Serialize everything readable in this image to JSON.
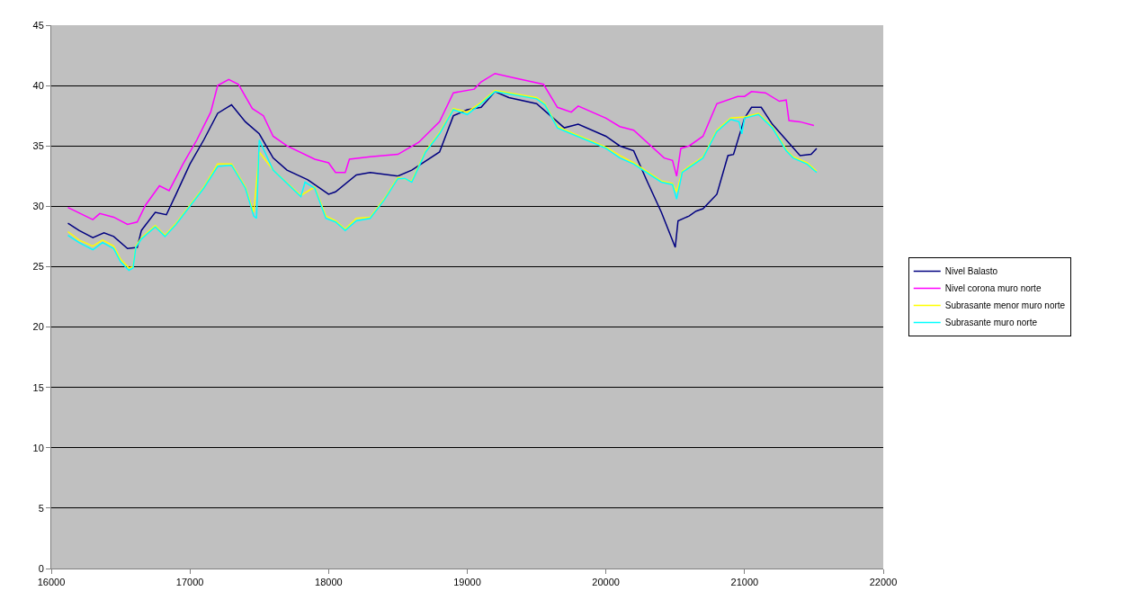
{
  "chart_data": {
    "type": "line",
    "xlim": [
      16000,
      22000
    ],
    "xticks": [
      16000,
      17000,
      18000,
      19000,
      20000,
      21000,
      22000
    ],
    "ylim": [
      0,
      45
    ],
    "yticks": [
      0,
      5,
      10,
      15,
      20,
      25,
      30,
      35,
      40,
      45
    ],
    "grid": "y",
    "legend": "right",
    "marker": "none",
    "line_style": "solid",
    "series": [
      {
        "name": "Nivel Balasto",
        "color": "#000080",
        "x": [
          16120,
          16200,
          16300,
          16380,
          16450,
          16550,
          16620,
          16650,
          16750,
          16830,
          16900,
          17000,
          17100,
          17200,
          17300,
          17400,
          17500,
          17600,
          17700,
          17850,
          18000,
          18050,
          18200,
          18300,
          18500,
          18600,
          18800,
          18900,
          19000,
          19100,
          19200,
          19300,
          19500,
          19600,
          19700,
          19800,
          20000,
          20100,
          20200,
          20300,
          20400,
          20500,
          20520,
          20600,
          20650,
          20700,
          20800,
          20880,
          20920,
          21000,
          21050,
          21120,
          21200,
          21300,
          21400,
          21480,
          21520
        ],
        "values": [
          28.6,
          28.0,
          27.4,
          27.8,
          27.5,
          26.5,
          26.6,
          28.0,
          29.5,
          29.3,
          31.0,
          33.5,
          35.5,
          37.7,
          38.4,
          37.0,
          36.0,
          34.0,
          33.0,
          32.2,
          31.0,
          31.2,
          32.6,
          32.8,
          32.5,
          33.0,
          34.5,
          37.5,
          38.0,
          38.2,
          39.5,
          39.0,
          38.5,
          37.5,
          36.5,
          36.8,
          35.8,
          35.0,
          34.6,
          32.0,
          29.5,
          26.6,
          28.8,
          29.2,
          29.6,
          29.8,
          31.0,
          34.2,
          34.3,
          37.3,
          38.2,
          38.2,
          36.8,
          35.5,
          34.2,
          34.3,
          34.8
        ]
      },
      {
        "name": "Nivel corona muro norte",
        "color": "#ff00ff",
        "x": [
          16120,
          16300,
          16350,
          16450,
          16550,
          16620,
          16680,
          16780,
          16850,
          16950,
          17050,
          17150,
          17200,
          17280,
          17350,
          17450,
          17530,
          17600,
          17700,
          17900,
          18000,
          18050,
          18120,
          18150,
          18300,
          18500,
          18650,
          18800,
          18900,
          19050,
          19100,
          19200,
          19350,
          19550,
          19650,
          19750,
          19800,
          20000,
          20100,
          20200,
          20420,
          20480,
          20510,
          20540,
          20600,
          20700,
          20800,
          20950,
          21000,
          21050,
          21150,
          21250,
          21300,
          21320,
          21400,
          21500
        ],
        "values": [
          29.9,
          28.9,
          29.4,
          29.1,
          28.5,
          28.7,
          30.1,
          31.7,
          31.3,
          33.5,
          35.5,
          37.8,
          40.0,
          40.5,
          40.1,
          38.1,
          37.5,
          35.8,
          35.0,
          33.9,
          33.6,
          32.8,
          32.8,
          33.9,
          34.1,
          34.3,
          35.3,
          37.0,
          39.4,
          39.7,
          40.3,
          41.0,
          40.6,
          40.1,
          38.2,
          37.8,
          38.3,
          37.3,
          36.6,
          36.3,
          34.0,
          33.8,
          32.5,
          34.8,
          35.0,
          35.8,
          38.5,
          39.1,
          39.1,
          39.5,
          39.4,
          38.7,
          38.8,
          37.1,
          37.0,
          36.7
        ]
      },
      {
        "name": "Subrasante menor muro norte",
        "color": "#ffff00",
        "x": [
          16120,
          16200,
          16300,
          16370,
          16450,
          16500,
          16560,
          16590,
          16610,
          16650,
          16750,
          16820,
          16900,
          17000,
          17100,
          17200,
          17300,
          17400,
          17460,
          17500,
          17600,
          17800,
          17900,
          17980,
          18050,
          18120,
          18200,
          18300,
          18400,
          18500,
          18600,
          18700,
          18800,
          18900,
          19000,
          19100,
          19200,
          19500,
          19560,
          19650,
          19750,
          19900,
          20000,
          20100,
          20200,
          20400,
          20480,
          20510,
          20550,
          20700,
          20800,
          20900,
          21000,
          21100,
          21200,
          21300,
          21350,
          21450,
          21520
        ],
        "values": [
          27.9,
          27.2,
          26.7,
          27.2,
          26.7,
          25.6,
          24.9,
          25.0,
          26.7,
          27.4,
          28.4,
          27.6,
          28.6,
          30.1,
          31.6,
          33.5,
          33.5,
          31.6,
          29.5,
          34.5,
          33.0,
          30.9,
          31.6,
          29.2,
          28.8,
          28.1,
          29.0,
          29.1,
          30.6,
          32.4,
          32.1,
          34.6,
          36.1,
          38.1,
          37.8,
          38.6,
          39.6,
          39.0,
          38.5,
          36.6,
          36.1,
          35.4,
          34.9,
          34.2,
          33.6,
          32.1,
          31.9,
          31.2,
          32.9,
          34.1,
          36.3,
          37.3,
          37.4,
          37.7,
          36.6,
          34.7,
          34.1,
          33.6,
          32.9
        ]
      },
      {
        "name": "Subrasante muro norte",
        "color": "#00ffff",
        "x": [
          16120,
          16200,
          16300,
          16370,
          16450,
          16500,
          16560,
          16590,
          16610,
          16650,
          16750,
          16820,
          16900,
          17000,
          17100,
          17200,
          17300,
          17400,
          17460,
          17480,
          17500,
          17600,
          17800,
          17830,
          17900,
          17980,
          18050,
          18120,
          18200,
          18300,
          18400,
          18500,
          18550,
          18600,
          18700,
          18800,
          18900,
          19000,
          19100,
          19200,
          19500,
          19560,
          19650,
          19750,
          19900,
          20000,
          20100,
          20200,
          20400,
          20480,
          20510,
          20550,
          20700,
          20800,
          20900,
          20960,
          20980,
          21000,
          21100,
          21200,
          21300,
          21350,
          21450,
          21520
        ],
        "values": [
          27.6,
          27.0,
          26.4,
          27.0,
          26.5,
          25.4,
          24.7,
          24.9,
          26.6,
          27.3,
          28.3,
          27.5,
          28.5,
          30.0,
          31.5,
          33.3,
          33.4,
          31.5,
          29.2,
          29.0,
          35.5,
          33.0,
          30.8,
          32.0,
          31.5,
          29.0,
          28.7,
          28.0,
          28.8,
          29.0,
          30.5,
          32.3,
          32.3,
          32.0,
          34.5,
          36.0,
          38.0,
          37.6,
          38.5,
          39.5,
          38.9,
          38.4,
          36.5,
          36.0,
          35.3,
          34.8,
          34.0,
          33.5,
          32.0,
          31.8,
          30.6,
          32.8,
          34.0,
          36.2,
          37.2,
          37.0,
          36.0,
          37.3,
          37.6,
          36.5,
          34.6,
          34.0,
          33.5,
          32.8
        ]
      }
    ]
  }
}
